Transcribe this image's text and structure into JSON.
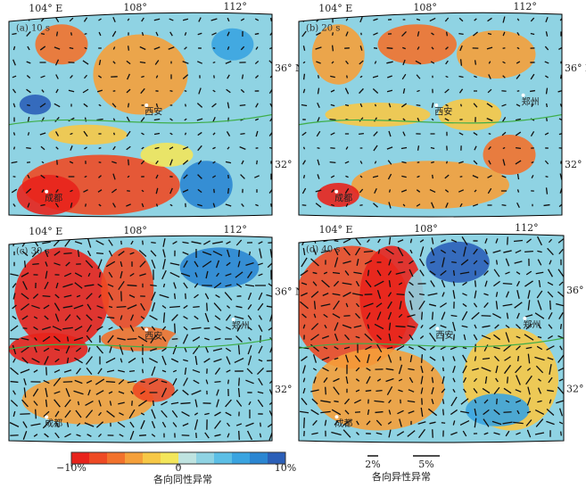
{
  "panels": [
    {
      "label": "(a) 10 s",
      "lon_labels": [
        "104° E",
        "108°",
        "112°"
      ],
      "lat_labels": [
        "36° N",
        "32°"
      ],
      "cities": [
        "成都",
        "西安"
      ]
    },
    {
      "label": "(b) 20 s",
      "lon_labels": [
        "104° E",
        "108°",
        "112°"
      ],
      "lat_labels": [
        "36° N",
        "32°"
      ],
      "cities": [
        "成都",
        "西安",
        "郑州"
      ]
    },
    {
      "label": "(c) 30 s",
      "lon_labels": [
        "104° E",
        "108°",
        "112°"
      ],
      "lat_labels": [
        "36° N",
        "32°"
      ],
      "cities": [
        "成都",
        "西安",
        "郑州"
      ]
    },
    {
      "label": "(d) 40 s",
      "lon_labels": [
        "104° E",
        "108°",
        "112°"
      ],
      "lat_labels": [
        "36° N",
        "32°"
      ],
      "cities": [
        "成都",
        "西安",
        "郑州"
      ]
    }
  ],
  "colorbar": {
    "title": "各向同性异常",
    "range": [
      -10,
      10
    ],
    "ticks": [
      {
        "value": -10,
        "label": "−10%"
      },
      {
        "value": 0,
        "label": "0"
      },
      {
        "value": 10,
        "label": "10%"
      }
    ],
    "colors": [
      "#e8231c",
      "#ee4a24",
      "#f2722c",
      "#f5a03a",
      "#f7c846",
      "#f3e65a",
      "#bfe3e0",
      "#8fd3e3",
      "#5cbfe6",
      "#3aa4e0",
      "#2b86d2",
      "#2b5fb8"
    ]
  },
  "anisotropy_legend": {
    "title": "各向异性异常",
    "scales": [
      {
        "value": 2,
        "label": "2%"
      },
      {
        "value": 5,
        "label": "5%"
      }
    ]
  }
}
